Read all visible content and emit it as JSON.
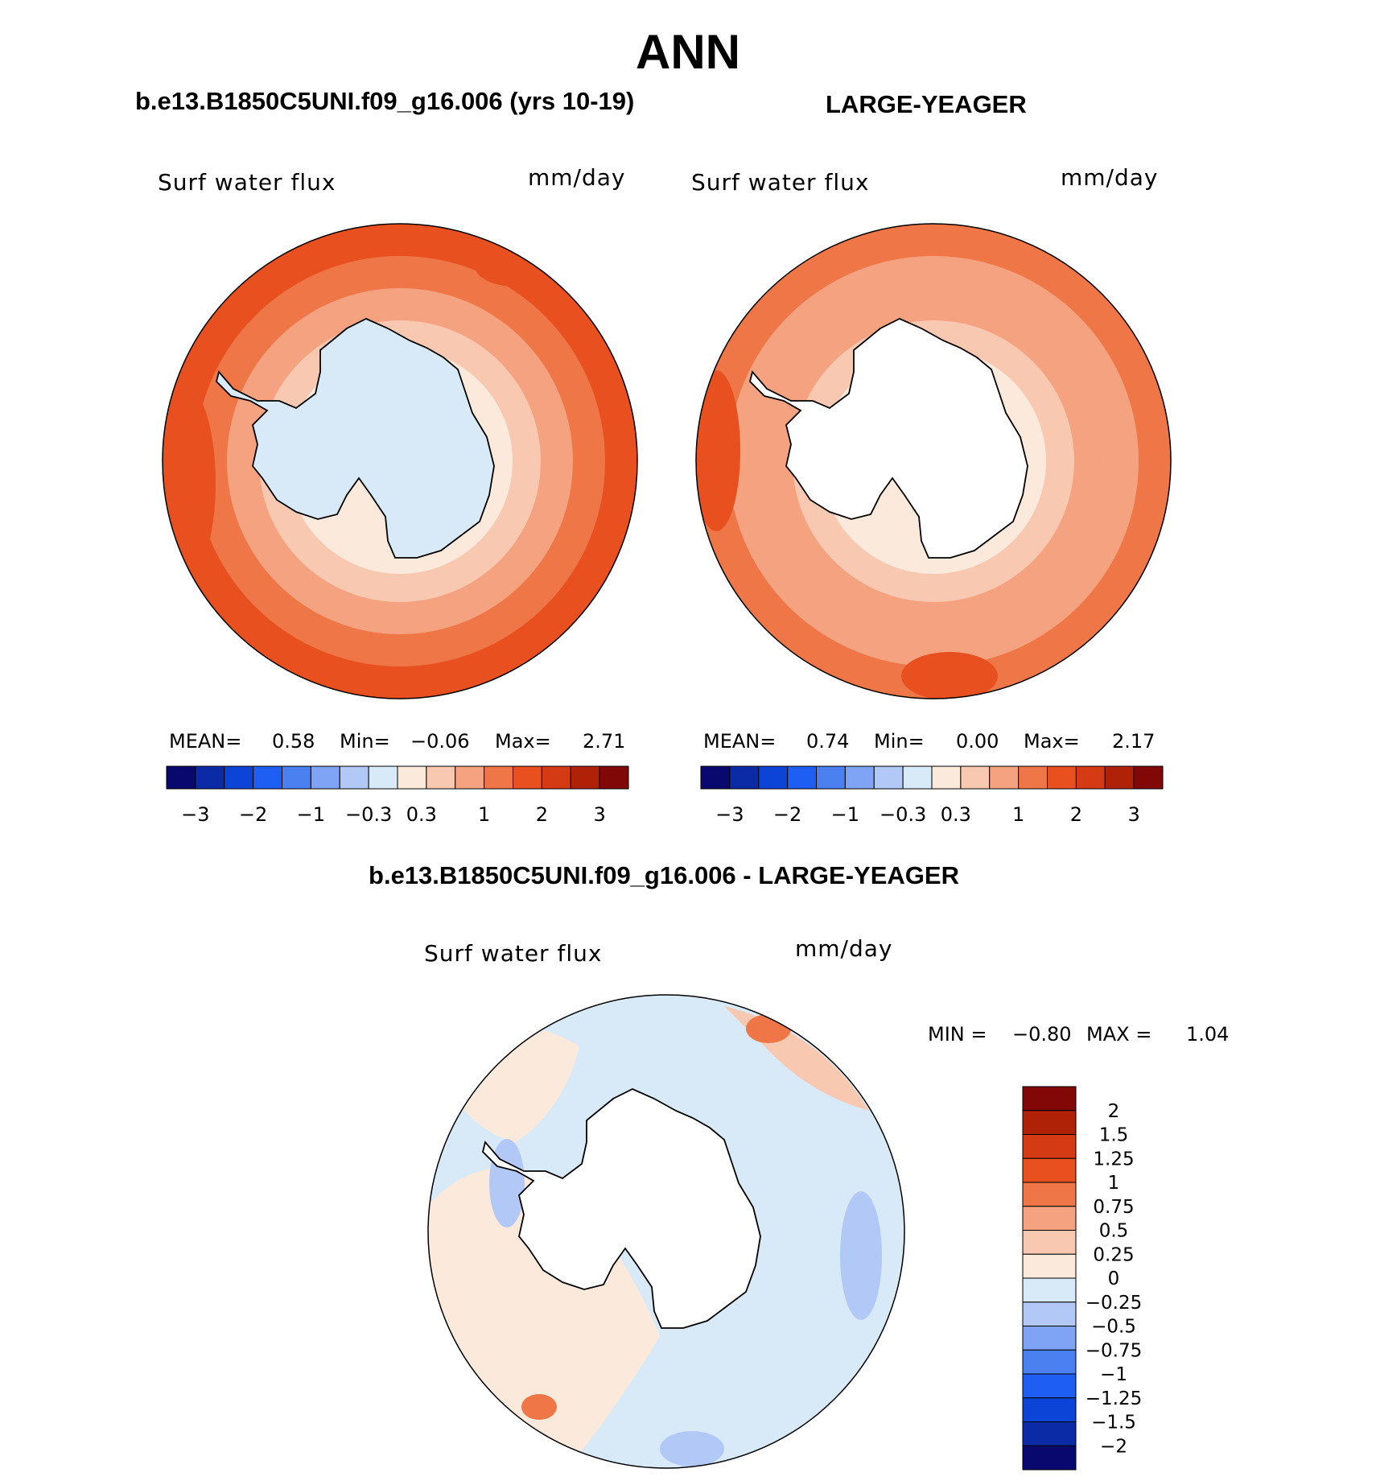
{
  "main_title": "ANN",
  "panels": [
    {
      "title": "b.e13.B1850C5UNI.f09_g16.006 (yrs 10-19)",
      "var_label": "Surf  water  flux",
      "units": "mm/day",
      "stats": {
        "mean_label": "MEAN=",
        "mean": "0.58",
        "min_label": "Min=",
        "min": "−0.06",
        "max_label": "Max=",
        "max": "2.71"
      },
      "rings": [
        "#fbe9dc",
        "#f9c8b1",
        "#f4a27f",
        "#ee7647",
        "#e8501f"
      ],
      "interior": "#d8eaf8"
    },
    {
      "title": "LARGE-YEAGER",
      "var_label": "Surf  water  flux",
      "units": "mm/day",
      "stats": {
        "mean_label": "MEAN=",
        "mean": "0.74",
        "min_label": "Min=",
        "min": "0.00",
        "max_label": "Max=",
        "max": "2.17"
      },
      "rings": [
        "#fbe9dc",
        "#f9c8b1",
        "#f4a27f",
        "#f4a27f",
        "#ee7647"
      ],
      "interior": "#ffffff"
    },
    {
      "title": "b.e13.B1850C5UNI.f09_g16.006 - LARGE-YEAGER",
      "var_label": "Surf  water  flux",
      "units": "mm/day",
      "minmax": {
        "min_label": "MIN =",
        "min": "−0.80",
        "max_label": "MAX =",
        "max": "1.04"
      },
      "interior": "#ffffff"
    }
  ],
  "colorbar_horizontal": {
    "colors": [
      "#08086e",
      "#0a2aa6",
      "#0d44d8",
      "#1f5ef2",
      "#4a80f0",
      "#7fa4f5",
      "#b2c9f7",
      "#d8eaf8",
      "#fbe9dc",
      "#f9c8b1",
      "#f4a27f",
      "#ee7647",
      "#e8501f",
      "#d43a13",
      "#b02208",
      "#820808"
    ],
    "labels": [
      "−3",
      "−2",
      "−1",
      "−0.3",
      "0.3",
      "1",
      "2",
      "3"
    ]
  },
  "colorbar_vertical": {
    "colors": [
      "#820808",
      "#b02208",
      "#d43a13",
      "#e8501f",
      "#ee7647",
      "#f4a27f",
      "#f9c8b1",
      "#fbe9dc",
      "#d8eaf8",
      "#b2c9f7",
      "#7fa4f5",
      "#4a80f0",
      "#1f5ef2",
      "#0d44d8",
      "#0a2aa6",
      "#08086e"
    ],
    "labels": [
      "2",
      "1.5",
      "1.25",
      "1",
      "0.75",
      "0.5",
      "0.25",
      "0",
      "−0.25",
      "−0.5",
      "−0.75",
      "−1",
      "−1.25",
      "−1.5",
      "−2"
    ]
  },
  "chart_data": [
    {
      "type": "heatmap",
      "projection": "south polar stereographic",
      "title": "b.e13.B1850C5UNI.f09_g16.006 (yrs 10-19)",
      "variable": "Surf water flux",
      "units": "mm/day",
      "mean": 0.58,
      "min": -0.06,
      "max": 2.71,
      "contour_levels": [
        -3,
        -2.5,
        -2,
        -1.5,
        -1,
        -0.6,
        -0.3,
        0,
        0.3,
        0.6,
        1,
        1.5,
        2,
        2.5,
        3
      ],
      "colorbar_tick_labels": [
        -3,
        -2,
        -1,
        -0.3,
        0.3,
        1,
        2,
        3
      ]
    },
    {
      "type": "heatmap",
      "projection": "south polar stereographic",
      "title": "LARGE-YEAGER",
      "variable": "Surf water flux",
      "units": "mm/day",
      "mean": 0.74,
      "min": 0.0,
      "max": 2.17,
      "contour_levels": [
        -3,
        -2.5,
        -2,
        -1.5,
        -1,
        -0.6,
        -0.3,
        0,
        0.3,
        0.6,
        1,
        1.5,
        2,
        2.5,
        3
      ],
      "colorbar_tick_labels": [
        -3,
        -2,
        -1,
        -0.3,
        0.3,
        1,
        2,
        3
      ]
    },
    {
      "type": "heatmap",
      "projection": "south polar stereographic",
      "title": "b.e13.B1850C5UNI.f09_g16.006 - LARGE-YEAGER",
      "variable": "Surf water flux",
      "units": "mm/day",
      "min": -0.8,
      "max": 1.04,
      "contour_levels": [
        2,
        1.5,
        1.25,
        1,
        0.75,
        0.5,
        0.25,
        0,
        -0.25,
        -0.5,
        -0.75,
        -1,
        -1.25,
        -1.5,
        -2
      ]
    }
  ]
}
